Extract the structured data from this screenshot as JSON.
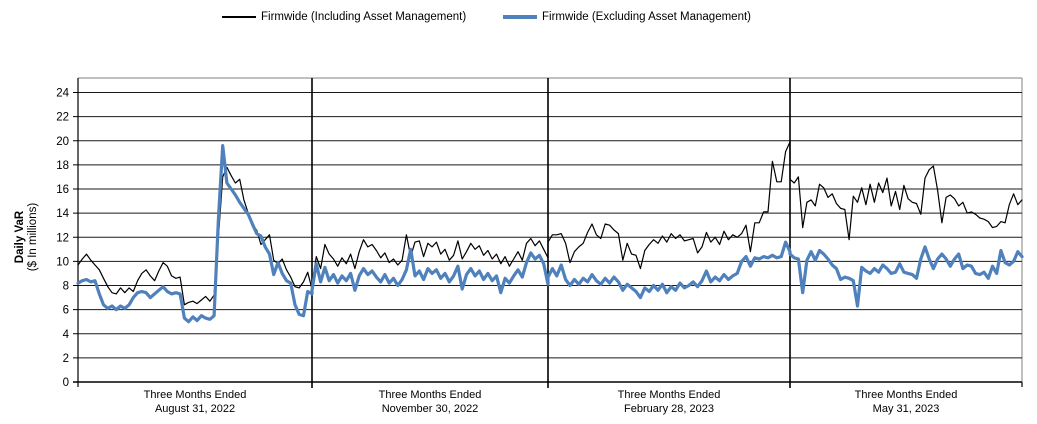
{
  "legend": {
    "series": [
      {
        "label": "Firmwide (Including Asset Management)",
        "color": "#000000",
        "thickness": 1.5
      },
      {
        "label": "Firmwide (Excluding Asset Management)",
        "color": "#4F81BD",
        "thickness": 4
      }
    ]
  },
  "y_axis": {
    "title_line1": "Daily VaR",
    "title_line2": "($ In millions)",
    "ticks": [
      0,
      2,
      4,
      6,
      8,
      10,
      12,
      14,
      16,
      18,
      20,
      22,
      24
    ]
  },
  "chart_data": {
    "type": "line",
    "title": "",
    "ylabel": "Daily VaR ($ In millions)",
    "ylim": [
      0,
      24
    ],
    "ytick_step": 2,
    "grid": "horizontal",
    "legend_position": "top",
    "x_groups": [
      {
        "label_line1": "Three Months Ended",
        "label_line2": "August 31, 2022"
      },
      {
        "label_line1": "Three Months Ended",
        "label_line2": "November 30, 2022"
      },
      {
        "label_line1": "Three Months Ended",
        "label_line2": "February 28, 2023"
      },
      {
        "label_line1": "Three Months Ended",
        "label_line2": "May 31, 2023"
      }
    ],
    "points_per_group": 56,
    "series": [
      {
        "name": "Firmwide (Including Asset Management)",
        "color": "#000000",
        "width": 1.2,
        "values": [
          9.7,
          10.2,
          10.6,
          10.1,
          9.7,
          9.3,
          8.6,
          7.9,
          7.4,
          7.3,
          7.8,
          7.4,
          7.8,
          7.5,
          8.4,
          9.0,
          9.3,
          8.8,
          8.4,
          9.2,
          9.9,
          9.6,
          8.8,
          8.6,
          8.7,
          6.4,
          6.6,
          6.7,
          6.5,
          6.8,
          7.1,
          6.7,
          7.2,
          12.0,
          17.0,
          17.8,
          17.1,
          16.5,
          16.8,
          15.1,
          14.0,
          12.9,
          12.6,
          11.4,
          11.8,
          12.2,
          10.1,
          9.8,
          10.2,
          9.3,
          8.7,
          7.9,
          7.8,
          8.3,
          9.1,
          7.7,
          8.1,
          10.4,
          9.4,
          11.4,
          10.6,
          10.2,
          9.6,
          10.3,
          9.8,
          10.6,
          9.4,
          10.8,
          11.8,
          11.2,
          11.4,
          10.9,
          10.3,
          10.7,
          9.9,
          10.2,
          9.7,
          10.1,
          12.2,
          10.4,
          11.6,
          11.7,
          10.4,
          11.5,
          11.2,
          11.6,
          10.6,
          11.0,
          10.1,
          10.5,
          11.7,
          10.2,
          10.8,
          11.5,
          11.0,
          11.3,
          10.5,
          10.9,
          10.2,
          10.6,
          9.8,
          10.4,
          9.6,
          10.2,
          10.8,
          10.1,
          11.5,
          11.9,
          11.3,
          11.7,
          11.0,
          10.3,
          11.6,
          12.2,
          12.2,
          12.3,
          11.5,
          9.9,
          10.8,
          11.2,
          11.5,
          12.4,
          13.1,
          12.2,
          11.9,
          13.1,
          13.0,
          12.6,
          12.3,
          10.1,
          11.5,
          10.6,
          10.5,
          9.4,
          10.9,
          11.4,
          11.8,
          11.5,
          12.1,
          11.6,
          12.3,
          11.9,
          12.2,
          11.7,
          11.8,
          11.9,
          10.7,
          11.2,
          12.4,
          11.6,
          12.0,
          11.4,
          12.5,
          11.8,
          12.2,
          12.0,
          12.3,
          13.0,
          10.8,
          13.2,
          13.2,
          14.1,
          14.1,
          18.3,
          16.6,
          16.6,
          19.1,
          19.9,
          16.8,
          16.5,
          17.0,
          12.8,
          14.9,
          15.1,
          14.6,
          16.4,
          16.1,
          15.3,
          15.6,
          14.8,
          14.4,
          14.3,
          11.8,
          15.4,
          14.9,
          16.1,
          14.7,
          16.4,
          14.9,
          16.5,
          15.7,
          16.9,
          14.6,
          15.8,
          14.3,
          16.3,
          15.2,
          14.9,
          14.8,
          13.9,
          16.9,
          17.6,
          17.9,
          15.9,
          13.2,
          15.3,
          15.5,
          15.2,
          14.6,
          14.9,
          14.0,
          14.1,
          13.9,
          13.6,
          13.5,
          13.3,
          12.8,
          12.9,
          13.3,
          13.2,
          14.7,
          15.6,
          14.7,
          15.1
        ]
      },
      {
        "name": "Firmwide (Excluding Asset Management)",
        "color": "#4F81BD",
        "width": 3.2,
        "values": [
          8.2,
          8.4,
          8.5,
          8.3,
          8.4,
          7.3,
          6.4,
          6.1,
          6.3,
          6.0,
          6.3,
          6.1,
          6.4,
          7.0,
          7.4,
          7.5,
          7.4,
          7.0,
          7.3,
          7.6,
          7.9,
          7.5,
          7.3,
          7.4,
          7.3,
          5.3,
          5.0,
          5.4,
          5.1,
          5.5,
          5.3,
          5.2,
          5.5,
          13.5,
          19.6,
          16.5,
          16.0,
          15.5,
          14.9,
          14.4,
          13.9,
          13.1,
          12.3,
          12.1,
          11.2,
          10.6,
          8.9,
          9.9,
          9.0,
          8.4,
          8.2,
          6.4,
          5.6,
          5.5,
          7.5,
          7.3,
          7.6,
          9.8,
          8.3,
          9.5,
          8.4,
          8.9,
          8.2,
          8.8,
          8.4,
          9.0,
          7.6,
          8.8,
          9.4,
          8.9,
          9.2,
          8.7,
          8.3,
          8.9,
          8.2,
          8.6,
          8.0,
          8.5,
          9.3,
          11.0,
          8.8,
          9.2,
          8.5,
          9.4,
          9.0,
          9.3,
          8.6,
          9.0,
          8.3,
          8.8,
          9.6,
          7.7,
          8.9,
          9.4,
          8.8,
          9.2,
          8.5,
          9.0,
          8.4,
          8.8,
          7.4,
          8.6,
          8.2,
          8.8,
          9.3,
          8.7,
          9.9,
          10.7,
          10.2,
          10.5,
          9.8,
          8.1,
          8.7,
          9.4,
          8.8,
          9.7,
          8.5,
          8.0,
          8.5,
          8.1,
          8.6,
          8.3,
          8.9,
          8.4,
          8.1,
          8.6,
          8.2,
          8.7,
          8.3,
          7.6,
          8.1,
          7.8,
          7.5,
          7.0,
          7.8,
          7.5,
          8.0,
          7.6,
          8.1,
          7.4,
          7.9,
          7.6,
          8.2,
          7.8,
          8.0,
          8.3,
          7.9,
          8.4,
          9.2,
          8.3,
          8.7,
          8.4,
          8.9,
          8.5,
          8.8,
          9.0,
          10.0,
          10.4,
          9.6,
          10.3,
          10.2,
          10.4,
          10.3,
          10.5,
          10.3,
          10.4,
          11.6,
          10.8,
          10.6,
          10.3,
          10.2,
          7.4,
          10.1,
          10.8,
          10.1,
          10.9,
          10.6,
          10.2,
          9.7,
          9.4,
          8.5,
          8.7,
          8.6,
          8.4,
          6.3,
          9.5,
          9.2,
          9.0,
          9.4,
          9.1,
          9.7,
          9.4,
          9.0,
          9.1,
          9.8,
          9.1,
          9.0,
          8.9,
          8.6,
          10.2,
          11.2,
          10.2,
          9.4,
          10.2,
          10.6,
          10.2,
          9.6,
          10.2,
          10.6,
          9.4,
          9.7,
          9.6,
          9.0,
          8.9,
          9.1,
          8.6,
          9.6,
          9.0,
          10.9,
          9.9,
          9.7,
          10.0,
          10.8,
          10.4
        ]
      }
    ]
  }
}
